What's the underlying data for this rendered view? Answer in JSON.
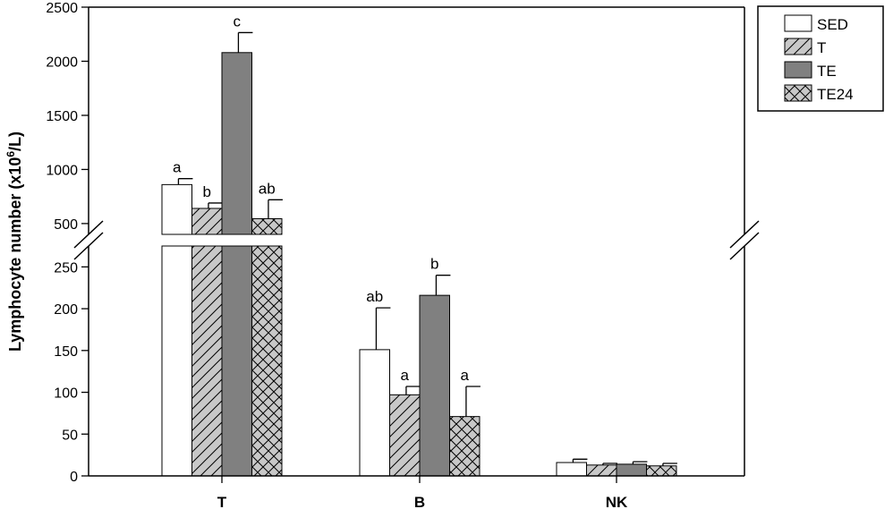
{
  "chart_data": {
    "type": "bar",
    "categories": [
      "T",
      "B",
      "NK"
    ],
    "ylabel": "Lymphocyte number (x10",
    "ylabel_sup": "6",
    "ylabel_suffix": "/L)",
    "axis_break": true,
    "lower_segment": {
      "ylim": [
        0,
        275
      ],
      "ticks": [
        0,
        50,
        100,
        150,
        200,
        250
      ]
    },
    "upper_segment": {
      "ylim": [
        400,
        2500
      ],
      "ticks": [
        500,
        1000,
        1500,
        2000,
        2500
      ]
    },
    "legend_position": "top-right",
    "series": [
      {
        "name": "SED",
        "pattern": "solid-white",
        "values": [
          860,
          151,
          16
        ],
        "error": [
          55,
          50,
          4
        ],
        "letters": [
          "a",
          "ab",
          ""
        ]
      },
      {
        "name": "T",
        "pattern": "diagonal-hatch",
        "values": [
          640,
          97,
          13
        ],
        "error": [
          50,
          10,
          2
        ],
        "letters": [
          "b",
          "a",
          ""
        ]
      },
      {
        "name": "TE",
        "pattern": "solid-gray",
        "values": [
          2080,
          216,
          14
        ],
        "error": [
          185,
          24,
          3
        ],
        "letters": [
          "c",
          "b",
          ""
        ]
      },
      {
        "name": "TE24",
        "pattern": "cross-hatch",
        "values": [
          545,
          71,
          12
        ],
        "error": [
          175,
          36,
          3
        ],
        "letters": [
          "ab",
          "a",
          ""
        ]
      }
    ]
  },
  "colors": {
    "axis": "#000000",
    "bar_outline": "#000000",
    "te_fill": "#808080",
    "hatch_bg": "#c8c8c8",
    "white": "#ffffff"
  }
}
